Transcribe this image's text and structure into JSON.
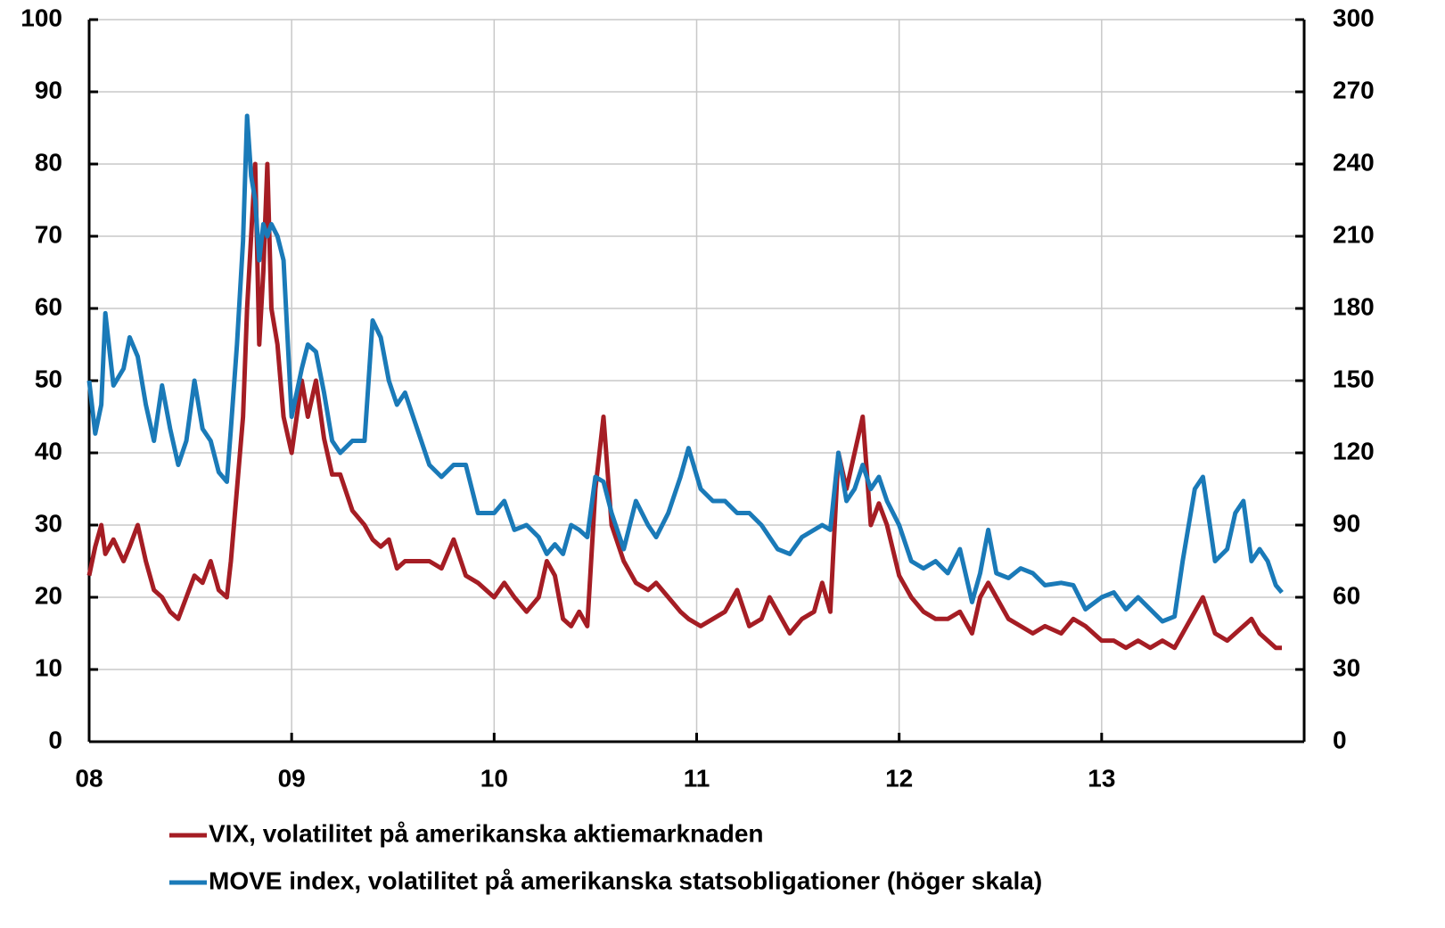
{
  "chart_data": {
    "type": "line",
    "x": [
      2008.0,
      2008.03,
      2008.06,
      2008.08,
      2008.12,
      2008.17,
      2008.2,
      2008.24,
      2008.28,
      2008.32,
      2008.36,
      2008.4,
      2008.44,
      2008.48,
      2008.52,
      2008.56,
      2008.6,
      2008.64,
      2008.68,
      2008.7,
      2008.73,
      2008.76,
      2008.78,
      2008.8,
      2008.82,
      2008.84,
      2008.86,
      2008.88,
      2008.9,
      2008.93,
      2008.96,
      2009.0,
      2009.05,
      2009.08,
      2009.12,
      2009.16,
      2009.2,
      2009.24,
      2009.3,
      2009.36,
      2009.4,
      2009.44,
      2009.48,
      2009.52,
      2009.56,
      2009.62,
      2009.68,
      2009.74,
      2009.8,
      2009.86,
      2009.92,
      2010.0,
      2010.05,
      2010.1,
      2010.16,
      2010.22,
      2010.26,
      2010.3,
      2010.34,
      2010.38,
      2010.42,
      2010.46,
      2010.5,
      2010.54,
      2010.58,
      2010.64,
      2010.7,
      2010.76,
      2010.8,
      2010.86,
      2010.92,
      2010.96,
      2011.02,
      2011.08,
      2011.14,
      2011.2,
      2011.26,
      2011.32,
      2011.36,
      2011.4,
      2011.46,
      2011.52,
      2011.58,
      2011.62,
      2011.66,
      2011.7,
      2011.74,
      2011.78,
      2011.82,
      2011.86,
      2011.9,
      2011.94,
      2012.0,
      2012.06,
      2012.12,
      2012.18,
      2012.24,
      2012.3,
      2012.36,
      2012.4,
      2012.44,
      2012.48,
      2012.54,
      2012.6,
      2012.66,
      2012.72,
      2012.8,
      2012.86,
      2012.92,
      2013.0,
      2013.06,
      2013.12,
      2013.18,
      2013.24,
      2013.3,
      2013.36,
      2013.4,
      2013.46,
      2013.5,
      2013.56,
      2013.62,
      2013.66,
      2013.7,
      2013.74,
      2013.78,
      2013.82,
      2013.86,
      2013.89
    ],
    "series": [
      {
        "name": "VIX, volatilitet på amerikanska aktiemarknaden",
        "color": "#a51d24",
        "values": [
          23,
          27,
          30,
          26,
          28,
          25,
          27,
          30,
          25,
          21,
          20,
          18,
          17,
          20,
          23,
          22,
          25,
          21,
          20,
          25,
          35,
          45,
          60,
          70,
          80,
          55,
          65,
          80,
          60,
          55,
          45,
          40,
          50,
          45,
          50,
          42,
          37,
          37,
          32,
          30,
          28,
          27,
          28,
          24,
          25,
          25,
          25,
          24,
          28,
          23,
          22,
          20,
          22,
          20,
          18,
          20,
          25,
          23,
          17,
          16,
          18,
          16,
          35,
          45,
          30,
          25,
          22,
          21,
          22,
          20,
          18,
          17,
          16,
          17,
          18,
          21,
          16,
          17,
          20,
          18,
          15,
          17,
          18,
          22,
          18,
          40,
          35,
          40,
          45,
          30,
          33,
          30,
          23,
          20,
          18,
          17,
          17,
          18,
          15,
          20,
          22,
          20,
          17,
          16,
          15,
          16,
          15,
          17,
          16,
          14,
          14,
          13,
          14,
          13,
          14,
          13,
          15,
          18,
          20,
          15,
          14,
          15,
          16,
          17,
          15,
          14,
          13,
          13
        ]
      },
      {
        "name": "MOVE index, volatilitet på amerikanska statsobligationer (höger skala)",
        "color": "#1a7ab8",
        "axis": "y2",
        "values": [
          150,
          128,
          140,
          178,
          148,
          155,
          168,
          160,
          140,
          125,
          148,
          130,
          115,
          125,
          150,
          130,
          125,
          112,
          108,
          130,
          165,
          208,
          260,
          235,
          225,
          200,
          215,
          210,
          215,
          210,
          200,
          135,
          155,
          165,
          162,
          145,
          125,
          120,
          125,
          125,
          175,
          168,
          150,
          140,
          145,
          130,
          115,
          110,
          115,
          115,
          95,
          95,
          100,
          88,
          90,
          85,
          78,
          82,
          78,
          90,
          88,
          85,
          110,
          108,
          95,
          80,
          100,
          90,
          85,
          95,
          110,
          122,
          105,
          100,
          100,
          95,
          95,
          90,
          85,
          80,
          78,
          85,
          88,
          90,
          88,
          120,
          100,
          105,
          115,
          105,
          110,
          100,
          90,
          75,
          72,
          75,
          70,
          80,
          58,
          70,
          88,
          70,
          68,
          72,
          70,
          65,
          66,
          65,
          55,
          60,
          62,
          55,
          60,
          55,
          50,
          52,
          75,
          105,
          110,
          75,
          80,
          95,
          100,
          75,
          80,
          75,
          65,
          62
        ]
      }
    ],
    "xlim": [
      2008,
      2014
    ],
    "xticks": [
      {
        "value": 2008,
        "label": "08"
      },
      {
        "value": 2009,
        "label": "09"
      },
      {
        "value": 2010,
        "label": "10"
      },
      {
        "value": 2011,
        "label": "11"
      },
      {
        "value": 2012,
        "label": "12"
      },
      {
        "value": 2013,
        "label": "13"
      }
    ],
    "ylim": [
      0,
      100
    ],
    "yticks": [
      0,
      10,
      20,
      30,
      40,
      50,
      60,
      70,
      80,
      90,
      100
    ],
    "y2lim": [
      0,
      300
    ],
    "y2ticks": [
      0,
      30,
      60,
      90,
      120,
      150,
      180,
      210,
      240,
      270,
      300
    ],
    "grid": true
  }
}
